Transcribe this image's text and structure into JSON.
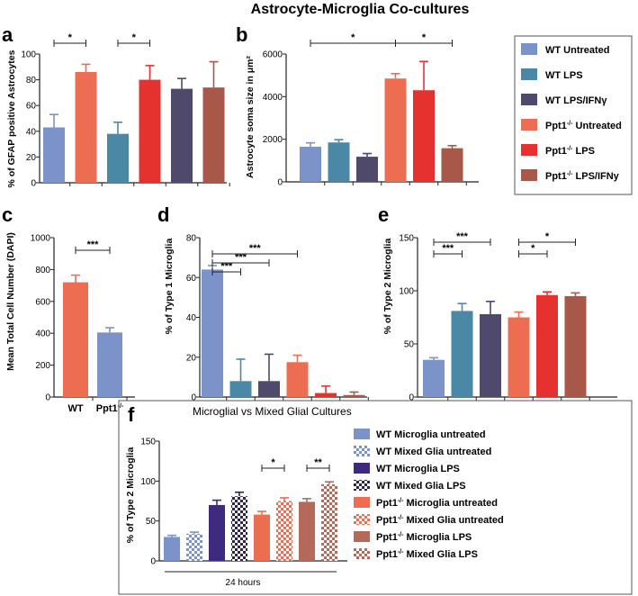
{
  "title": "Astrocyte-Microglia Co-cultures",
  "colors": {
    "wt_untreated": "#7b93c9",
    "wt_lps": "#4a88a6",
    "wt_lps_ifn": "#4f4a6b",
    "ppt_untreated": "#ec6d52",
    "ppt_lps": "#e5322f",
    "ppt_lps_ifn": "#a75848",
    "wt_microglia_lps": "#3e2a7f",
    "ppt_microglia_lps": "#b5695a",
    "wt_mixed_lps": "#2e2448",
    "check_light": "#ffffff",
    "axis": "#222222",
    "legend_border": "#555555"
  },
  "legend_top": {
    "items": [
      {
        "text": "WT Untreated",
        "base": "",
        "sup": "",
        "rest": "",
        "color_key": "wt_untreated"
      },
      {
        "text": "WT LPS",
        "base": "",
        "sup": "",
        "rest": "",
        "color_key": "wt_lps"
      },
      {
        "text": "WT LPS/IFNγ",
        "base": "",
        "sup": "",
        "rest": "",
        "color_key": "wt_lps_ifn"
      },
      {
        "text": "",
        "base": "Ppt1",
        "sup": "-/-",
        "rest": " Untreated",
        "color_key": "ppt_untreated"
      },
      {
        "text": "",
        "base": "Ppt1",
        "sup": "-/-",
        "rest": " LPS",
        "color_key": "ppt_lps"
      },
      {
        "text": "",
        "base": "Ppt1",
        "sup": "-/-",
        "rest": " LPS/IFNy",
        "color_key": "ppt_lps_ifn"
      }
    ]
  },
  "chart_data": [
    {
      "panel": "a",
      "type": "bar",
      "ylabel": "% of GFAP positive Astrocytes",
      "ylim": [
        0,
        100
      ],
      "yticks": [
        "0",
        "20",
        "40",
        "60",
        "80",
        "100"
      ],
      "categories": [
        "WT Untreated",
        "Ppt1-/- Untreated",
        "WT LPS",
        "Ppt1-/- LPS",
        "WT LPS/IFNγ",
        "Ppt1-/- LPS/IFNy"
      ],
      "values": [
        43,
        86,
        38,
        80,
        73,
        74
      ],
      "errors": [
        10,
        6,
        9,
        11,
        8,
        20
      ],
      "colors": [
        "wt_untreated",
        "ppt_untreated",
        "wt_lps",
        "ppt_lps",
        "wt_lps_ifn",
        "ppt_lps_ifn"
      ],
      "patterns": [
        false,
        false,
        false,
        false,
        false,
        false
      ],
      "significance": [
        {
          "from": 0,
          "to": 1,
          "label": "*"
        },
        {
          "from": 2,
          "to": 3,
          "label": "*"
        }
      ]
    },
    {
      "panel": "b",
      "type": "bar",
      "ylabel": "Astrocyte soma size in μm²",
      "ylim": [
        0,
        6000
      ],
      "yticks": [
        "0",
        "2000",
        "4000",
        "6000"
      ],
      "categories": [
        "WT Untreated",
        "WT LPS",
        "WT LPS/IFNγ",
        "Ppt1-/- Untreated",
        "Ppt1-/- LPS",
        "Ppt1-/- LPS/IFNy"
      ],
      "values": [
        1650,
        1850,
        1180,
        4850,
        4300,
        1580
      ],
      "errors": [
        180,
        130,
        150,
        230,
        1350,
        120
      ],
      "colors": [
        "wt_untreated",
        "wt_lps",
        "wt_lps_ifn",
        "ppt_untreated",
        "ppt_lps",
        "ppt_lps_ifn"
      ],
      "patterns": [
        false,
        false,
        false,
        false,
        false,
        false
      ],
      "significance": [
        {
          "from": 0,
          "to": 3,
          "label": "*"
        },
        {
          "from": 3,
          "to": 5,
          "label": "*"
        }
      ]
    },
    {
      "panel": "c",
      "type": "bar",
      "ylabel": "Mean Total Cell Number (DAPI)",
      "ylim": [
        0,
        1000
      ],
      "yticks": [
        "0",
        "200",
        "400",
        "600",
        "800",
        "1000"
      ],
      "categories": [
        "WT",
        "Ppt1-/-"
      ],
      "values": [
        720,
        405
      ],
      "errors": [
        45,
        30
      ],
      "colors": [
        "ppt_untreated",
        "wt_untreated"
      ],
      "patterns": [
        false,
        false
      ],
      "significance": [
        {
          "from": 0,
          "to": 1,
          "label": "***"
        }
      ]
    },
    {
      "panel": "d",
      "type": "bar",
      "ylabel": "% of Type 1 Microglia",
      "ylim": [
        0,
        80
      ],
      "yticks": [
        "0",
        "20",
        "40",
        "60",
        "80"
      ],
      "categories": [
        "WT Untreated",
        "WT LPS",
        "WT LPS/IFNγ",
        "Ppt1-/- Untreated",
        "Ppt1-/- LPS",
        "Ppt1-/- LPS/IFNy"
      ],
      "values": [
        64,
        8,
        8,
        17.5,
        2,
        1
      ],
      "errors": [
        2,
        11,
        13.5,
        3.5,
        3.5,
        1.5
      ],
      "colors": [
        "wt_untreated",
        "wt_lps",
        "wt_lps_ifn",
        "ppt_untreated",
        "ppt_lps",
        "ppt_lps_ifn"
      ],
      "patterns": [
        false,
        false,
        false,
        false,
        false,
        false
      ],
      "significance": [
        {
          "from": 0,
          "to": 1,
          "label": "***"
        },
        {
          "from": 0,
          "to": 2,
          "label": "***"
        },
        {
          "from": 0,
          "to": 3,
          "label": "***"
        }
      ]
    },
    {
      "panel": "e",
      "type": "bar",
      "ylabel": "% of Type 2 Microglia",
      "ylim": [
        0,
        150
      ],
      "yticks": [
        "0",
        "50",
        "100",
        "150"
      ],
      "categories": [
        "WT Untreated",
        "WT LPS",
        "WT LPS/IFNγ",
        "Ppt1-/- Untreated",
        "Ppt1-/- LPS",
        "Ppt1-/- LPS/IFNy"
      ],
      "values": [
        35,
        81,
        78,
        75,
        96,
        95
      ],
      "errors": [
        2,
        7,
        12,
        5,
        3,
        3
      ],
      "colors": [
        "wt_untreated",
        "wt_lps",
        "wt_lps_ifn",
        "ppt_untreated",
        "ppt_lps",
        "ppt_lps_ifn"
      ],
      "patterns": [
        false,
        false,
        false,
        false,
        false,
        false
      ],
      "significance": [
        {
          "from": 0,
          "to": 1,
          "label": "***"
        },
        {
          "from": 0,
          "to": 2,
          "label": "***"
        },
        {
          "from": 3,
          "to": 4,
          "label": "*"
        },
        {
          "from": 3,
          "to": 5,
          "label": "*"
        }
      ]
    },
    {
      "panel": "f",
      "type": "bar",
      "title": "Microglial vs Mixed Glial Cultures",
      "ylabel": "% of Type 2 Microglia",
      "xlabel": "24 hours",
      "ylim": [
        0,
        150
      ],
      "yticks": [
        "0",
        "50",
        "100",
        "150"
      ],
      "categories": [
        "WT Microglia untreated",
        "WT Mixed Glia untreated",
        "WT Microglia LPS",
        "WT Mixed Glia LPS",
        "Ppt1-/- Microglia untreated",
        "Ppt1-/- Mixed Glia untreated",
        "Ppt1-/- Microglia LPS",
        "Ppt1-/- Mixed Glia LPS"
      ],
      "values": [
        30,
        34,
        70,
        81,
        58,
        75,
        74,
        96
      ],
      "errors": [
        2,
        2,
        6,
        5,
        4,
        4,
        4,
        3
      ],
      "colors": [
        "wt_untreated",
        "wt_untreated",
        "wt_microglia_lps",
        "wt_mixed_lps",
        "ppt_untreated",
        "ppt_untreated",
        "ppt_microglia_lps",
        "ppt_microglia_lps"
      ],
      "patterns": [
        false,
        true,
        false,
        true,
        false,
        true,
        false,
        true
      ],
      "significance": [
        {
          "from": 4,
          "to": 5,
          "label": "*"
        },
        {
          "from": 6,
          "to": 7,
          "label": "**"
        }
      ],
      "legend": [
        {
          "text": "WT Microglia untreated",
          "base": "",
          "sup": "",
          "rest": "",
          "color_key": "wt_untreated",
          "pattern": false
        },
        {
          "text": "WT Mixed Glia untreated",
          "base": "",
          "sup": "",
          "rest": "",
          "color_key": "wt_untreated",
          "pattern": true
        },
        {
          "text": "WT Microglia LPS",
          "base": "",
          "sup": "",
          "rest": "",
          "color_key": "wt_microglia_lps",
          "pattern": false
        },
        {
          "text": "WT Mixed Glia LPS",
          "base": "",
          "sup": "",
          "rest": "",
          "color_key": "wt_mixed_lps",
          "pattern": true
        },
        {
          "text": "",
          "base": "Ppt1",
          "sup": "-/-",
          "rest": " Microglia untreated",
          "color_key": "ppt_untreated",
          "pattern": false
        },
        {
          "text": "",
          "base": "Ppt1",
          "sup": "-/-",
          "rest": " Mixed Glia untreated",
          "color_key": "ppt_untreated",
          "pattern": true
        },
        {
          "text": "",
          "base": "Ppt1",
          "sup": "-/-",
          "rest": " Microglia LPS",
          "color_key": "ppt_microglia_lps",
          "pattern": false
        },
        {
          "text": "",
          "base": "Ppt1",
          "sup": "-/-",
          "rest": " Mixed Glia LPS",
          "color_key": "ppt_microglia_lps",
          "pattern": true
        }
      ]
    }
  ],
  "x_tick_labels_c": [
    {
      "text": "WT",
      "base": "",
      "sup": "",
      "rest": ""
    },
    {
      "text": "",
      "base": "Ppt1",
      "sup": "-/-",
      "rest": ""
    }
  ]
}
